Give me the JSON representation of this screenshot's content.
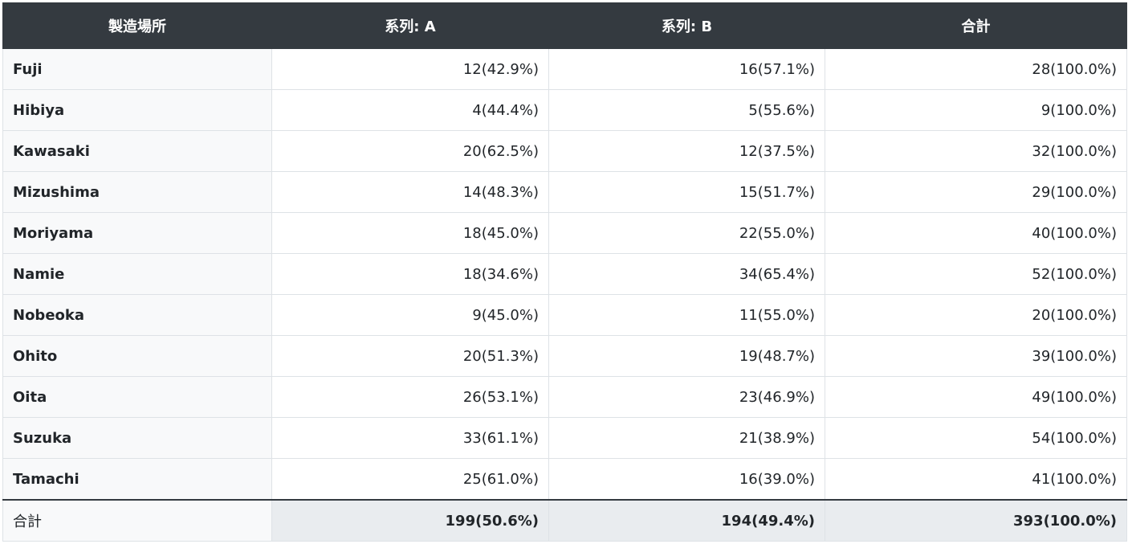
{
  "table": {
    "headers": [
      "製造場所",
      "系列: A",
      "系列: B",
      "合計"
    ],
    "rows": [
      {
        "label": "Fuji",
        "a": "12(42.9%)",
        "b": "16(57.1%)",
        "total": "28(100.0%)"
      },
      {
        "label": "Hibiya",
        "a": "4(44.4%)",
        "b": "5(55.6%)",
        "total": "9(100.0%)"
      },
      {
        "label": "Kawasaki",
        "a": "20(62.5%)",
        "b": "12(37.5%)",
        "total": "32(100.0%)"
      },
      {
        "label": "Mizushima",
        "a": "14(48.3%)",
        "b": "15(51.7%)",
        "total": "29(100.0%)"
      },
      {
        "label": "Moriyama",
        "a": "18(45.0%)",
        "b": "22(55.0%)",
        "total": "40(100.0%)"
      },
      {
        "label": "Namie",
        "a": "18(34.6%)",
        "b": "34(65.4%)",
        "total": "52(100.0%)"
      },
      {
        "label": "Nobeoka",
        "a": "9(45.0%)",
        "b": "11(55.0%)",
        "total": "20(100.0%)"
      },
      {
        "label": "Ohito",
        "a": "20(51.3%)",
        "b": "19(48.7%)",
        "total": "39(100.0%)"
      },
      {
        "label": "Oita",
        "a": "26(53.1%)",
        "b": "23(46.9%)",
        "total": "49(100.0%)"
      },
      {
        "label": "Suzuka",
        "a": "33(61.1%)",
        "b": "21(38.9%)",
        "total": "54(100.0%)"
      },
      {
        "label": "Tamachi",
        "a": "25(61.0%)",
        "b": "16(39.0%)",
        "total": "41(100.0%)"
      }
    ],
    "footer": {
      "label": "合計",
      "a": "199(50.6%)",
      "b": "194(49.4%)",
      "total": "393(100.0%)"
    }
  },
  "colors": {
    "header_bg": "#343a40",
    "header_text": "#ffffff",
    "row_label_bg": "#f8f9fa",
    "footer_value_bg": "#e9ecef",
    "border": "#dee2e6"
  }
}
